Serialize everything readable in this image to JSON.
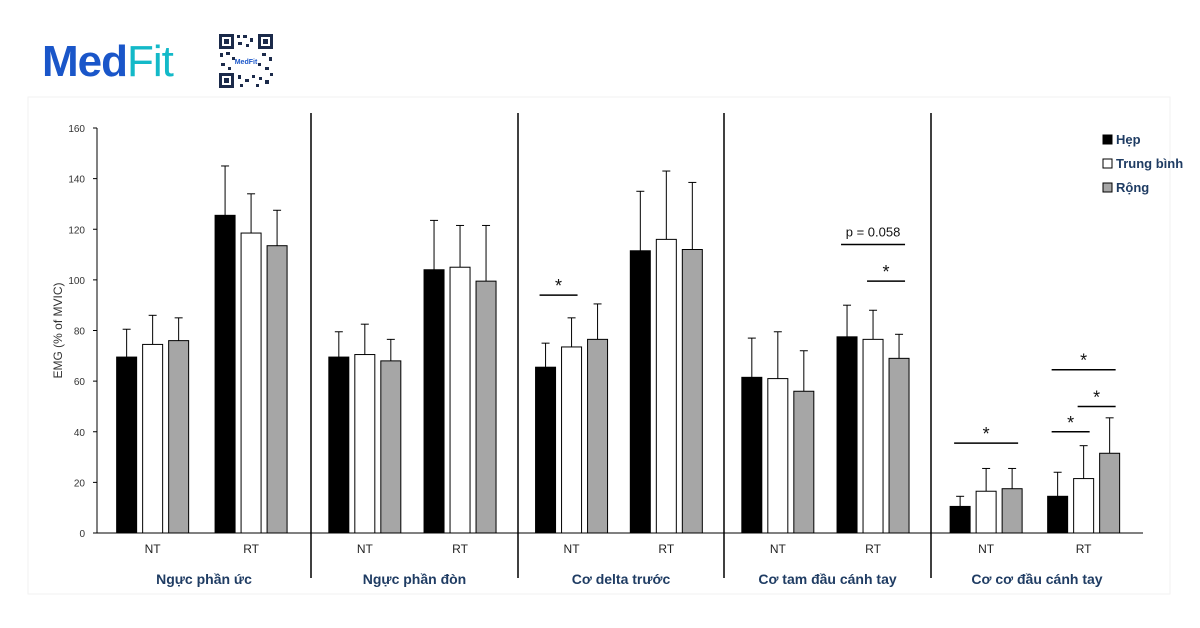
{
  "brand": {
    "name_main": "Med",
    "name_accent": "Fit",
    "qr_text": "MedFit"
  },
  "chart_data": {
    "type": "bar",
    "ylabel": "EMG (% of MVIC)",
    "ylim": [
      0,
      160
    ],
    "yticks": [
      0,
      20,
      40,
      60,
      80,
      100,
      120,
      140,
      160
    ],
    "series_names": [
      "Hẹp",
      "Trung bình",
      "Rộng"
    ],
    "series_colors": [
      "#000000",
      "#ffffff",
      "#a6a6a6"
    ],
    "legend_position": "top-right",
    "groups": [
      {
        "label": "Ngực phần ức",
        "conditions": [
          {
            "label": "NT",
            "values": [
              69.5,
              74.5,
              76
            ],
            "errors": [
              11,
              11.5,
              9
            ]
          },
          {
            "label": "RT",
            "values": [
              125.5,
              118.5,
              113.5
            ],
            "errors": [
              19.5,
              15.5,
              14
            ]
          }
        ]
      },
      {
        "label": "Ngực phần đòn",
        "conditions": [
          {
            "label": "NT",
            "values": [
              69.5,
              70.5,
              68
            ],
            "errors": [
              10,
              12,
              8.5
            ]
          },
          {
            "label": "RT",
            "values": [
              104,
              105,
              99.5
            ],
            "errors": [
              19.5,
              16.5,
              22
            ]
          }
        ]
      },
      {
        "label": "Cơ delta trước",
        "conditions": [
          {
            "label": "NT",
            "values": [
              65.5,
              73.5,
              76.5
            ],
            "errors": [
              9.5,
              11.5,
              14
            ]
          },
          {
            "label": "RT",
            "values": [
              111.5,
              116,
              112
            ],
            "errors": [
              23.5,
              27,
              26.5
            ]
          }
        ]
      },
      {
        "label": "Cơ tam đầu cánh tay",
        "conditions": [
          {
            "label": "NT",
            "values": [
              61.5,
              61,
              56
            ],
            "errors": [
              15.5,
              18.5,
              16
            ]
          },
          {
            "label": "RT",
            "values": [
              77.5,
              76.5,
              69
            ],
            "errors": [
              12.5,
              11.5,
              9.5
            ]
          }
        ]
      },
      {
        "label": "Cơ cơ đầu cánh tay",
        "conditions": [
          {
            "label": "NT",
            "values": [
              10.5,
              16.5,
              17.5
            ],
            "errors": [
              4,
              9,
              8
            ]
          },
          {
            "label": "RT",
            "values": [
              14.5,
              21.5,
              31.5
            ],
            "errors": [
              9.5,
              13,
              14
            ]
          }
        ]
      }
    ],
    "annotations": [
      {
        "group": 2,
        "condition": 0,
        "from": 0,
        "to": 1,
        "y": 94,
        "text": "*"
      },
      {
        "group": 3,
        "condition": 1,
        "from": 1,
        "to": 2,
        "y": 99.5,
        "text": "*"
      },
      {
        "group": 3,
        "condition": 1,
        "from": 0,
        "to": 2,
        "y": 114,
        "text": "p = 0.058"
      },
      {
        "group": 4,
        "condition": 0,
        "from": 0,
        "to": 2,
        "y": 35.5,
        "text": "*"
      },
      {
        "group": 4,
        "condition": 1,
        "from": 0,
        "to": 1,
        "y": 40,
        "text": "*"
      },
      {
        "group": 4,
        "condition": 1,
        "from": 1,
        "to": 2,
        "y": 50,
        "text": "*"
      },
      {
        "group": 4,
        "condition": 1,
        "from": 0,
        "to": 2,
        "y": 64.5,
        "text": "*"
      }
    ]
  }
}
